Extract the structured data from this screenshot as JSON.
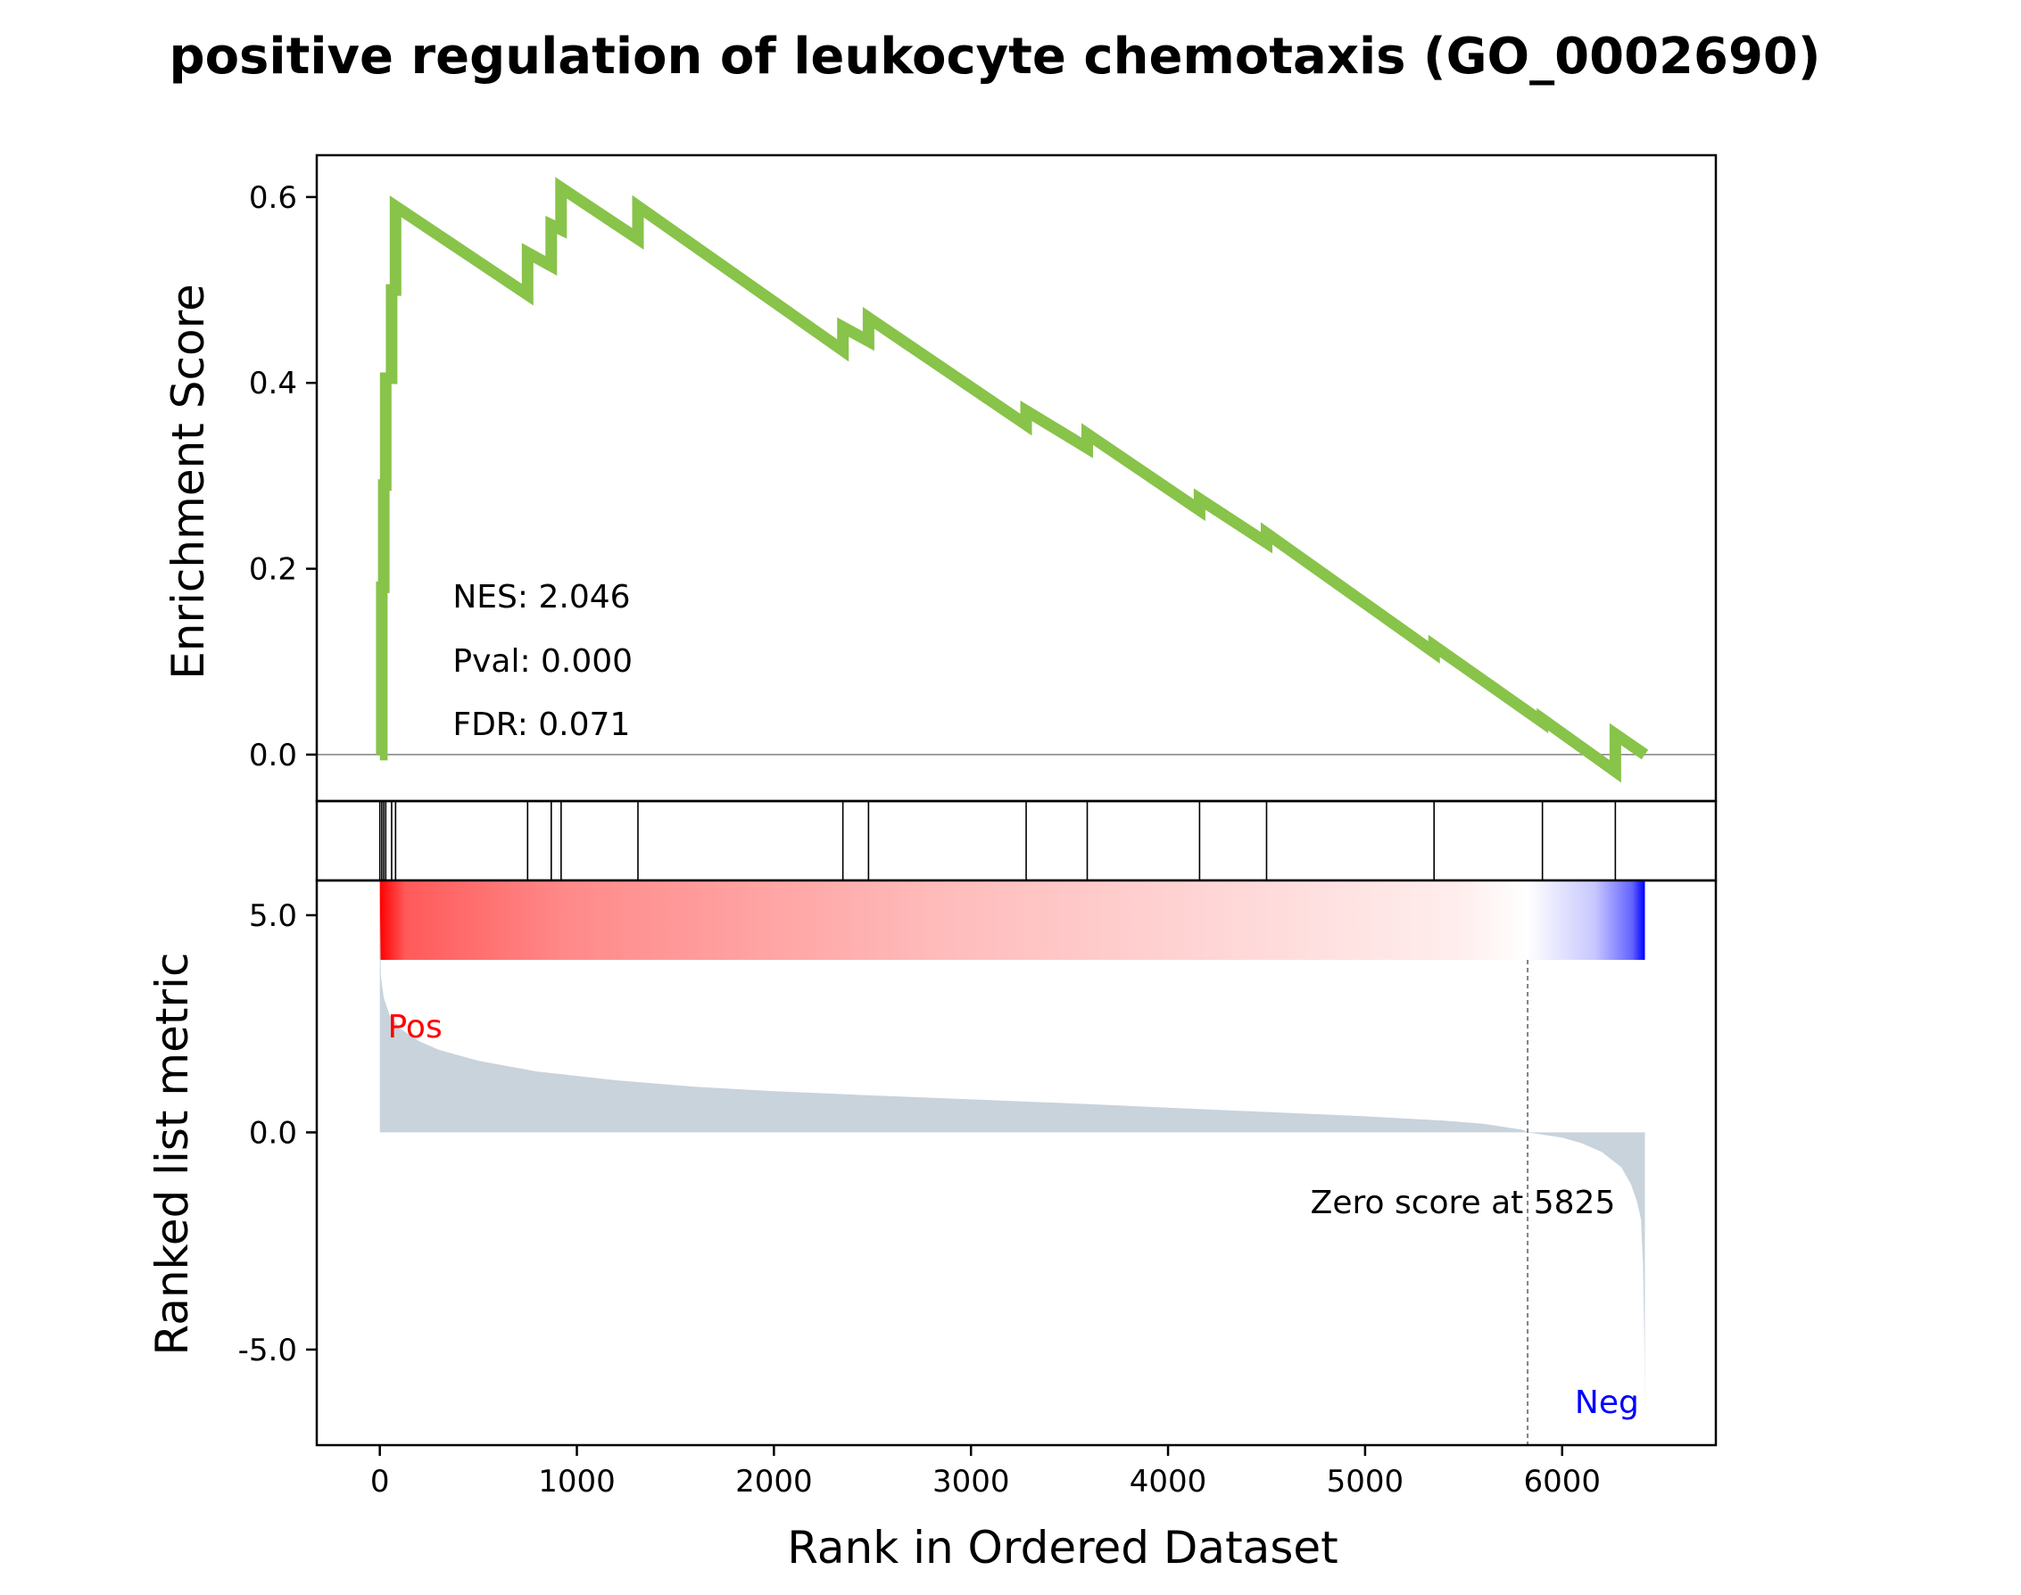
{
  "chart_data": {
    "type": "line",
    "title": "positive regulation of leukocyte chemotaxis (GO_0002690)",
    "xlabel": "Rank in Ordered Dataset",
    "xlim": [
      -320,
      6780
    ],
    "x_ticks": [
      "0",
      "1000",
      "2000",
      "3000",
      "4000",
      "5000",
      "6000"
    ],
    "enrichment": {
      "ylabel": "Enrichment Score",
      "ylim": [
        -0.05,
        0.645
      ],
      "y_ticks": [
        "0.0",
        "0.2",
        "0.4",
        "0.6"
      ],
      "color": "#88c34a",
      "zero_line": true,
      "x": [
        0,
        0,
        10,
        10,
        20,
        20,
        30,
        30,
        60,
        60,
        80,
        80,
        750,
        750,
        870,
        870,
        920,
        920,
        1310,
        1310,
        2350,
        2350,
        2480,
        2480,
        3280,
        3280,
        3590,
        3590,
        4160,
        4160,
        4500,
        4500,
        5350,
        5350,
        5900,
        5900,
        6270,
        6270,
        6420
      ],
      "y": [
        0.0,
        0.0,
        0.0,
        0.18,
        0.18,
        0.29,
        0.29,
        0.405,
        0.405,
        0.5,
        0.5,
        0.59,
        0.495,
        0.54,
        0.526,
        0.57,
        0.565,
        0.61,
        0.555,
        0.59,
        0.435,
        0.46,
        0.445,
        0.47,
        0.355,
        0.37,
        0.33,
        0.345,
        0.263,
        0.275,
        0.228,
        0.238,
        0.11,
        0.117,
        0.035,
        0.038,
        -0.018,
        0.022,
        0.0
      ],
      "stats": [
        "NES: 2.046",
        "Pval: 0.000",
        "FDR: 0.071"
      ]
    },
    "hits": [
      0,
      10,
      20,
      30,
      60,
      80,
      750,
      870,
      920,
      1310,
      2350,
      2480,
      3280,
      3590,
      4160,
      4500,
      5350,
      5900,
      6270
    ],
    "ranked_metric": {
      "ylabel": "Ranked list metric",
      "ylim": [
        -7.2,
        5.8
      ],
      "y_ticks": [
        "5.0",
        "0.0",
        "-5.0"
      ],
      "color": "#c8d3dc",
      "x": [
        0,
        5,
        20,
        50,
        100,
        200,
        300,
        500,
        800,
        1200,
        1600,
        2000,
        2500,
        3000,
        3500,
        4000,
        4500,
        5000,
        5400,
        5600,
        5800,
        5825,
        6000,
        6100,
        6200,
        6300,
        6350,
        6380,
        6400,
        6410,
        6418,
        6420
      ],
      "y": [
        5.5,
        3.6,
        3.1,
        2.7,
        2.4,
        2.1,
        1.9,
        1.65,
        1.4,
        1.2,
        1.05,
        0.95,
        0.85,
        0.76,
        0.67,
        0.57,
        0.47,
        0.37,
        0.27,
        0.2,
        0.06,
        0.0,
        -0.12,
        -0.25,
        -0.45,
        -0.8,
        -1.2,
        -1.6,
        -2.0,
        -3.0,
        -5.0,
        -6.6
      ],
      "zero_score_rank": 5825,
      "zero_score_label": "Zero score at 5825",
      "pos_label": "Pos",
      "neg_label": "Neg",
      "pos_color": "#ff0000",
      "neg_color": "#0000ff"
    }
  }
}
